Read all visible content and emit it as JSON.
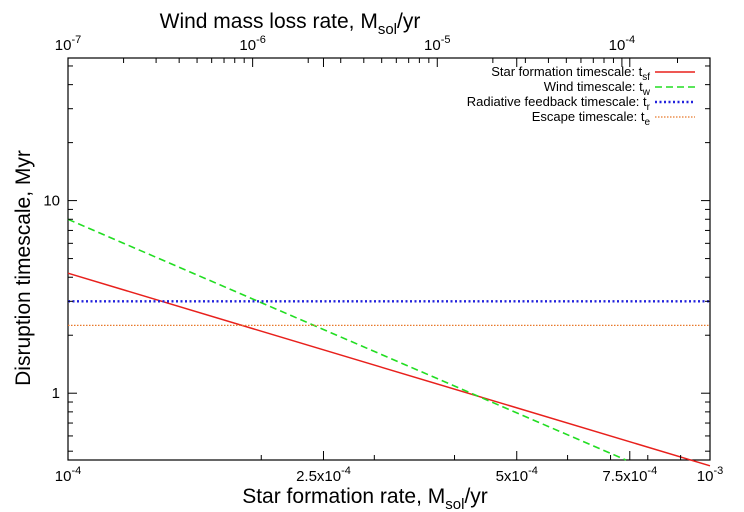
{
  "chart_data": {
    "type": "line",
    "x_scale": "log",
    "y_scale": "log",
    "xlim": [
      0.0001,
      0.001
    ],
    "ylim": [
      0.45,
      55
    ],
    "x2lim": [
      1e-07,
      0.0003
    ],
    "xlabel": {
      "text": "Star formation rate, M",
      "sub": "sol",
      "tail": "/yr"
    },
    "x2label": {
      "text": "Wind mass loss rate, M",
      "sub": "sol",
      "tail": "/yr"
    },
    "ylabel": "Disruption timescale, Myr",
    "xticks": [
      {
        "value": 0.0001,
        "base": "10",
        "exp": "-4"
      },
      {
        "value": 0.00025,
        "base": "2.5x10",
        "exp": "-4"
      },
      {
        "value": 0.0005,
        "base": "5x10",
        "exp": "-4"
      },
      {
        "value": 0.00075,
        "base": "7.5x10",
        "exp": "-4"
      },
      {
        "value": 0.001,
        "base": "10",
        "exp": "-3"
      }
    ],
    "x2ticks": [
      {
        "value": 1e-07,
        "base": "10",
        "exp": "-7"
      },
      {
        "value": 1e-06,
        "base": "10",
        "exp": "-6"
      },
      {
        "value": 1e-05,
        "base": "10",
        "exp": "-5"
      },
      {
        "value": 0.0001,
        "base": "10",
        "exp": "-4"
      },
      {
        "value": 0.001,
        "base": "10",
        "exp": "-3"
      }
    ],
    "yticks": [
      {
        "value": 1,
        "label": "1"
      },
      {
        "value": 10,
        "label": "10"
      }
    ],
    "legend_position": "top-right",
    "grid": false,
    "series": [
      {
        "name": "Star formation timescale: t",
        "sub": "sf",
        "color": "#e8201c",
        "dash": "solid",
        "x": [
          0.0001,
          0.001
        ],
        "y": [
          4.2,
          0.42
        ]
      },
      {
        "name": "Wind timescale: t",
        "sub": "w",
        "color": "#22dd22",
        "dash": "dashed",
        "x": [
          0.0001,
          0.00074
        ],
        "y": [
          8.0,
          0.45
        ]
      },
      {
        "name": "Radiative feedback timescale: t",
        "sub": "r",
        "color": "#2222dd",
        "dash": "dotted",
        "x": [
          0.0001,
          0.001
        ],
        "y": [
          3.0,
          3.0
        ]
      },
      {
        "name": "Escape timescale: t",
        "sub": "e",
        "color": "#e8792b",
        "dash": "dotted-fine",
        "x": [
          0.0001,
          0.001
        ],
        "y": [
          2.25,
          2.25
        ]
      }
    ]
  }
}
